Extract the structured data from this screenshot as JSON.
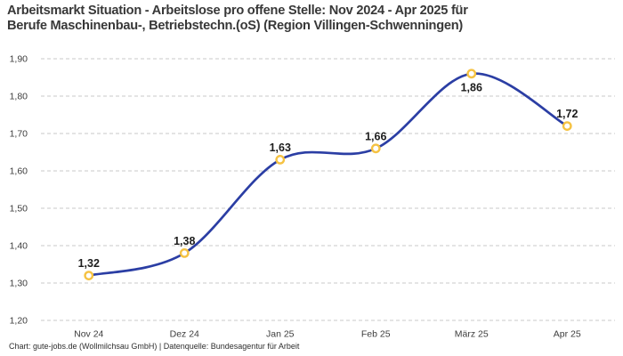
{
  "header": {
    "title_lines": [
      "Arbeitsmarkt Situation - Arbeitslose pro offene Stelle: Nov 2024 - Apr 2025 für",
      "Berufe Maschinenbau-, Betriebstechn.(oS) (Region Villingen-Schwenningen)"
    ]
  },
  "footer": {
    "credit": "Chart: gute-jobs.de (Wollmilchsau GmbH) | Datenquelle: Bundesagentur für Arbeit"
  },
  "chart_data": {
    "type": "line",
    "title": "Arbeitsmarkt Situation - Arbeitslose pro offene Stelle: Nov 2024 - Apr 2025 für Berufe Maschinenbau-, Betriebstechn.(oS) (Region Villingen-Schwenningen)",
    "categories": [
      "Nov 24",
      "Dez 24",
      "Jan 25",
      "Feb 25",
      "März 25",
      "Apr 25"
    ],
    "values": [
      1.32,
      1.38,
      1.63,
      1.66,
      1.86,
      1.72
    ],
    "value_labels": [
      "1,32",
      "1,38",
      "1,63",
      "1,66",
      "1,86",
      "1,72"
    ],
    "value_label_placement": [
      "above",
      "above",
      "above",
      "above",
      "below",
      "above"
    ],
    "ylim": [
      1.2,
      1.9
    ],
    "ytick_values": [
      1.2,
      1.3,
      1.4,
      1.5,
      1.6,
      1.7,
      1.8,
      1.9
    ],
    "ytick_labels": [
      "1,20",
      "1,30",
      "1,40",
      "1,50",
      "1,60",
      "1,70",
      "1,80",
      "1,90"
    ],
    "xlabel": "",
    "ylabel": "",
    "grid": "horizontal-dashed",
    "legend": "none",
    "line_color": "#2b3ea4",
    "marker_ring_color": "#f5c242",
    "marker_fill_color": "#ffffff",
    "grid_color": "#c9c9c9",
    "tick_label_color": "#3c3c3c",
    "data_label_color": "#1c1c1c"
  }
}
